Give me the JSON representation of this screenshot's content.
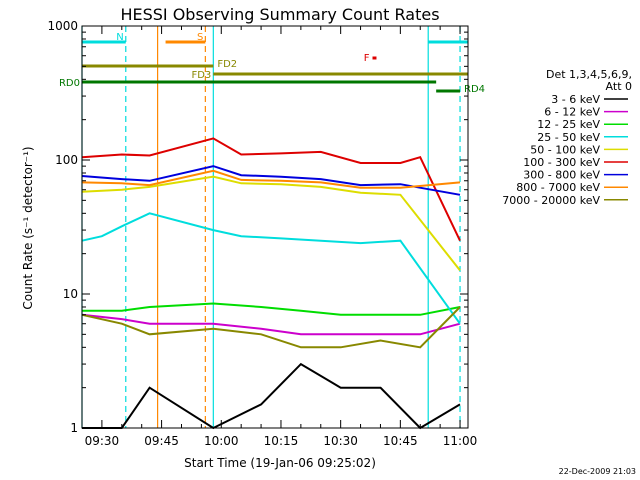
{
  "chart_data": {
    "type": "line",
    "title": "HESSI Observing Summary Count Rates",
    "xlabel": "Start Time (19-Jan-06 09:25:02)",
    "ylabel": "Count Rate (s⁻¹ detector⁻¹)",
    "y_scale": "log",
    "ylim": [
      1,
      1000
    ],
    "xlim": [
      "09:25",
      "11:02"
    ],
    "x_ticks": [
      "09:30",
      "09:45",
      "10:00",
      "10:15",
      "10:30",
      "10:45",
      "11:00"
    ],
    "y_ticks": [
      "1",
      "10",
      "100",
      "1000"
    ],
    "footer_date": "22-Dec-2009 21:03",
    "legend": {
      "header_line1": "Det 1,3,4,5,6,9,",
      "header_line2": "Att 0",
      "placement": "right"
    },
    "series": [
      {
        "name": "3 - 6 keV",
        "color": "#000000",
        "x": [
          "09:25",
          "09:35",
          "09:42",
          "09:58",
          "10:10",
          "10:20",
          "10:30",
          "10:40",
          "10:50",
          "11:00"
        ],
        "values": [
          1,
          1,
          2,
          1,
          1.5,
          3,
          2,
          2,
          1,
          1.5
        ]
      },
      {
        "name": "6 - 12 keV",
        "color": "#cc00cc",
        "x": [
          "09:25",
          "09:35",
          "09:42",
          "09:58",
          "10:10",
          "10:20",
          "10:30",
          "10:40",
          "10:50",
          "11:00"
        ],
        "values": [
          7,
          6.5,
          6,
          6,
          5.5,
          5,
          5,
          5,
          5,
          6
        ]
      },
      {
        "name": "12 - 25 keV",
        "color": "#00dd00",
        "x": [
          "09:25",
          "09:35",
          "09:42",
          "09:58",
          "10:10",
          "10:20",
          "10:30",
          "10:40",
          "10:50",
          "11:00"
        ],
        "values": [
          7.5,
          7.5,
          8,
          8.5,
          8,
          7.5,
          7,
          7,
          7,
          8
        ]
      },
      {
        "name": "25 - 50 keV",
        "color": "#00dddd",
        "x": [
          "09:25",
          "09:30",
          "09:35",
          "09:42",
          "09:58",
          "10:05",
          "10:15",
          "10:25",
          "10:35",
          "10:45",
          "11:00"
        ],
        "values": [
          25,
          27,
          32,
          40,
          30,
          27,
          26,
          25,
          24,
          25,
          6
        ]
      },
      {
        "name": "50 - 100 keV",
        "color": "#dddd00",
        "x": [
          "09:25",
          "09:35",
          "09:42",
          "09:58",
          "10:05",
          "10:15",
          "10:25",
          "10:35",
          "10:45",
          "11:00"
        ],
        "values": [
          58,
          60,
          63,
          75,
          67,
          66,
          63,
          57,
          55,
          15
        ]
      },
      {
        "name": "100 - 300 keV",
        "color": "#dd0000",
        "x": [
          "09:25",
          "09:35",
          "09:42",
          "09:58",
          "10:05",
          "10:15",
          "10:25",
          "10:35",
          "10:45",
          "10:50",
          "11:00"
        ],
        "values": [
          105,
          110,
          108,
          145,
          110,
          112,
          115,
          95,
          95,
          105,
          25
        ]
      },
      {
        "name": "300 - 800 keV",
        "color": "#0000dd",
        "x": [
          "09:25",
          "09:35",
          "09:42",
          "09:58",
          "10:05",
          "10:15",
          "10:25",
          "10:35",
          "10:45",
          "11:00"
        ],
        "values": [
          76,
          72,
          70,
          90,
          77,
          75,
          72,
          65,
          66,
          55
        ]
      },
      {
        "name": "800 - 7000 keV",
        "color": "#ff8800",
        "x": [
          "09:25",
          "09:35",
          "09:42",
          "09:58",
          "10:05",
          "10:15",
          "10:25",
          "10:35",
          "10:45",
          "11:00"
        ],
        "values": [
          68,
          67,
          65,
          83,
          71,
          70,
          68,
          62,
          62,
          68
        ]
      },
      {
        "name": "7000 - 20000 keV",
        "color": "#888800",
        "x": [
          "09:25",
          "09:35",
          "09:42",
          "09:58",
          "10:10",
          "10:20",
          "10:30",
          "10:40",
          "10:50",
          "11:00"
        ],
        "values": [
          7,
          6,
          5,
          5.5,
          5,
          4,
          4,
          4.5,
          4,
          8
        ]
      }
    ],
    "flag_bars": [
      {
        "label": "S",
        "color": "#ff8800",
        "start": "09:46",
        "end": "09:56",
        "level": "top"
      },
      {
        "label": "N",
        "color": "#00dddd",
        "start": "09:25",
        "end": "09:36",
        "level": "top"
      },
      {
        "label": "",
        "color": "#00dddd",
        "start": "10:52",
        "end": "11:02",
        "level": "top"
      },
      {
        "label": "F",
        "color": "#dd0000",
        "start": "10:38",
        "end": "10:39",
        "level": "upper"
      },
      {
        "label": "FD2",
        "color": "#888800",
        "start": "09:25",
        "end": "09:58",
        "level": "fd2"
      },
      {
        "label": "FD3",
        "color": "#888800",
        "start": "09:58",
        "end": "11:02",
        "level": "fd3"
      },
      {
        "label": "RD0",
        "color": "#007700",
        "start": "09:25",
        "end": "10:54",
        "level": "rd0"
      },
      {
        "label": "RD4",
        "color": "#007700",
        "start": "10:54",
        "end": "11:00",
        "level": "rd4"
      }
    ],
    "vlines": [
      {
        "time": "09:25",
        "color": "#00dddd",
        "style": "solid"
      },
      {
        "time": "09:36",
        "color": "#00dddd",
        "style": "dashed"
      },
      {
        "time": "09:44",
        "color": "#ff8800",
        "style": "solid"
      },
      {
        "time": "09:56",
        "color": "#ff8800",
        "style": "dashed"
      },
      {
        "time": "09:58",
        "color": "#00dddd",
        "style": "solid"
      },
      {
        "time": "10:52",
        "color": "#00dddd",
        "style": "solid"
      },
      {
        "time": "11:00",
        "color": "#00dddd",
        "style": "dashed"
      }
    ]
  }
}
